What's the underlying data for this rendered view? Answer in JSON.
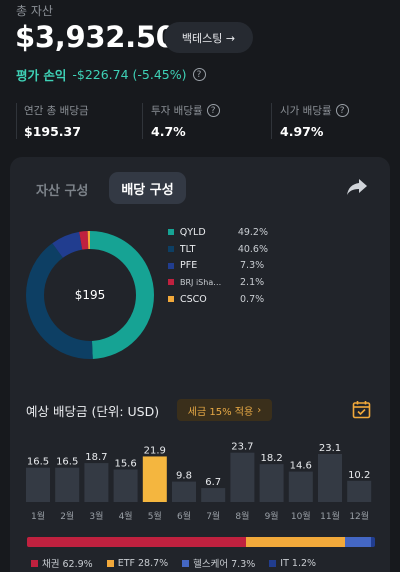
{
  "header": {
    "total_label": "총 자산",
    "total_value": "$3,932.50",
    "backtest_label": "백테스팅 →",
    "pnl_label": "평가 손익",
    "pnl_value": "-$226.74 (-5.45%)"
  },
  "stats": [
    {
      "label": "연간 총 배당금",
      "value": "$195.37",
      "has_help": false
    },
    {
      "label": "투자 배당률",
      "value": "4.7%",
      "has_help": true
    },
    {
      "label": "시가 배당률",
      "value": "4.97%",
      "has_help": true
    }
  ],
  "tabs": {
    "asset_composition": "자산 구성",
    "dividend_composition": "배당 구성"
  },
  "donut": {
    "center_label": "$195",
    "slices": [
      {
        "name": "QYLD",
        "pct_label": "49.2%",
        "value": 49.2,
        "color": "#16a394"
      },
      {
        "name": "TLT",
        "pct_label": "40.6%",
        "value": 40.6,
        "color": "#0d3f64"
      },
      {
        "name": "PFE",
        "pct_label": "7.3%",
        "value": 7.3,
        "color": "#213d8f"
      },
      {
        "name": "BRJ iSha…",
        "pct_label": "2.1%",
        "value": 2.1,
        "color": "#c0213f"
      },
      {
        "name": "CSCO",
        "pct_label": "0.7%",
        "value": 0.7,
        "color": "#f2a93b"
      }
    ]
  },
  "forecast": {
    "title": "예상 배당금 (단위: USD)",
    "tax_badge": "세금 15% 적용",
    "chevron": "›"
  },
  "chart_data": {
    "type": "bar",
    "categories": [
      "1월",
      "2월",
      "3월",
      "4월",
      "5월",
      "6월",
      "7월",
      "8월",
      "9월",
      "10월",
      "11월",
      "12월"
    ],
    "values": [
      16.5,
      16.5,
      18.7,
      15.6,
      21.9,
      9.8,
      6.7,
      23.7,
      18.2,
      14.6,
      23.1,
      10.2
    ],
    "value_labels": [
      "16.5",
      "16.5",
      "18.7",
      "15.6",
      "21.9",
      "9.8",
      "6.7",
      "23.7",
      "18.2",
      "14.6",
      "23.1",
      "10.2"
    ],
    "highlight_index": 4,
    "bar_color": "#343a44",
    "highlight_color": "#f4b63f",
    "ylim": [
      0,
      25
    ],
    "xlabel": "",
    "ylabel": ""
  },
  "breakdown": [
    {
      "label": "채권 62.9%",
      "value": 62.9,
      "color": "#c0213f"
    },
    {
      "label": "ETF 28.7%",
      "value": 28.7,
      "color": "#f2a93b"
    },
    {
      "label": "헬스케어 7.3%",
      "value": 7.3,
      "color": "#4467c4"
    },
    {
      "label": "IT 1.2%",
      "value": 1.2,
      "color": "#213d8f"
    }
  ]
}
